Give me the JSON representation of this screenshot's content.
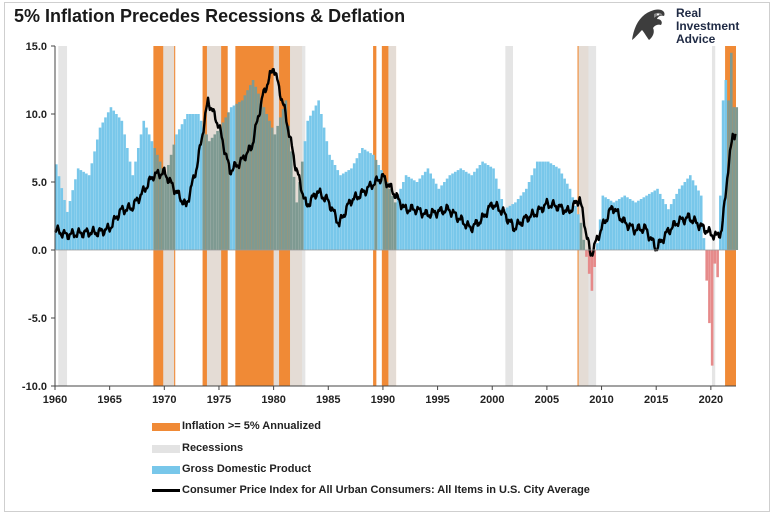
{
  "chart_data": {
    "type": "bar",
    "title": "5% Inflation Precedes Recessions & Deflation",
    "ylim": [
      -10,
      15
    ],
    "xlim": [
      1960,
      2022.3
    ],
    "y_ticks": [
      15,
      10,
      5,
      0,
      -5,
      -10
    ],
    "y_tick_labels": [
      "15.0",
      "10.0",
      "5.0",
      "0.0",
      "-5.0",
      "-10.0"
    ],
    "x_ticks": [
      1960,
      1965,
      1970,
      1975,
      1980,
      1985,
      1990,
      1995,
      2000,
      2005,
      2010,
      2015,
      2020
    ],
    "x_tick_labels": [
      "1960",
      "1965",
      "1970",
      "1975",
      "1980",
      "1985",
      "1990",
      "1995",
      "2000",
      "2005",
      "2010",
      "2015",
      "2020"
    ],
    "legend_position": "bottom",
    "colors": {
      "inflation": "#f08a36",
      "recession": "#e3e3e3",
      "gdp": "#78c7ea",
      "gdp_negative": "#e68a8a",
      "overlap": "#7e9a92",
      "cpi": "#000000"
    },
    "series": [
      {
        "name": "Inflation >= 5% Annualized",
        "kind": "shaded-periods",
        "periods": [
          [
            1969.0,
            1971.0
          ],
          [
            1973.5,
            1975.8
          ],
          [
            1976.5,
            1982.6
          ],
          [
            1989.1,
            1989.4
          ],
          [
            1989.9,
            1991.2
          ],
          [
            2007.8,
            2008.8
          ],
          [
            2021.3,
            2022.3
          ]
        ]
      },
      {
        "name": "Recessions",
        "kind": "shaded-periods",
        "periods": [
          [
            1960.3,
            1961.1
          ],
          [
            1969.9,
            1970.9
          ],
          [
            1973.9,
            1975.2
          ],
          [
            1980.0,
            1980.5
          ],
          [
            1981.5,
            1982.9
          ],
          [
            1990.5,
            1991.2
          ],
          [
            2001.2,
            2001.9
          ],
          [
            2007.9,
            2009.5
          ],
          [
            2020.1,
            2020.4
          ]
        ]
      },
      {
        "name": "Gross Domestic Product",
        "kind": "bars",
        "x": [
          1960,
          1961,
          1962,
          1963,
          1964,
          1965,
          1966,
          1967,
          1968,
          1969,
          1970,
          1971,
          1972,
          1973,
          1974,
          1975,
          1976,
          1977,
          1978,
          1979,
          1980,
          1981,
          1982,
          1983,
          1984,
          1985,
          1986,
          1987,
          1988,
          1989,
          1990,
          1991,
          1992,
          1993,
          1994,
          1995,
          1996,
          1997,
          1998,
          1999,
          2000,
          2001,
          2002,
          2003,
          2004,
          2005,
          2006,
          2007,
          2008,
          2009,
          2010,
          2011,
          2012,
          2013,
          2014,
          2015,
          2016,
          2017,
          2018,
          2019,
          2020,
          2020.25,
          2020.5,
          2020.75,
          2021,
          2021.25,
          2021.5,
          2021.75,
          2022
        ],
        "values": [
          6.3,
          2.8,
          6.0,
          5.5,
          9.0,
          10.5,
          9.5,
          5.5,
          9.5,
          7.5,
          5.5,
          8.5,
          10.0,
          10.0,
          8.0,
          9.0,
          10.5,
          11.0,
          12.5,
          10.5,
          8.5,
          11.0,
          3.5,
          9.5,
          11.0,
          7.0,
          5.5,
          6.0,
          7.5,
          7.0,
          5.5,
          3.5,
          5.5,
          5.0,
          6.0,
          4.5,
          5.5,
          6.0,
          5.5,
          6.5,
          6.0,
          3.0,
          3.5,
          4.5,
          6.5,
          6.5,
          6.0,
          4.5,
          2.0,
          -3.0,
          4.0,
          3.5,
          4.0,
          3.5,
          4.0,
          4.5,
          3.0,
          4.5,
          5.5,
          4.0,
          -8.5,
          -1.0,
          -2.0,
          4.0,
          11.0,
          12.5,
          11.0,
          14.5,
          10.5
        ]
      },
      {
        "name": "Consumer Price Index for All Urban Consumers: All Items in U.S. City Average",
        "kind": "line",
        "x": [
          1960,
          1961,
          1962,
          1963,
          1964,
          1965,
          1966,
          1967,
          1968,
          1969,
          1970,
          1971,
          1972,
          1973,
          1974,
          1975,
          1976,
          1977,
          1978,
          1979,
          1980,
          1981,
          1982,
          1983,
          1984,
          1985,
          1986,
          1987,
          1988,
          1989,
          1990,
          1991,
          1992,
          1993,
          1994,
          1995,
          1996,
          1997,
          1998,
          1999,
          2000,
          2001,
          2002,
          2003,
          2004,
          2005,
          2006,
          2007,
          2008,
          2009,
          2010,
          2011,
          2012,
          2013,
          2014,
          2015,
          2016,
          2017,
          2018,
          2019,
          2020,
          2020.5,
          2021,
          2021.5,
          2022
        ],
        "values": [
          1.5,
          1.1,
          1.2,
          1.3,
          1.3,
          1.6,
          2.9,
          3.1,
          4.2,
          5.5,
          5.7,
          4.4,
          3.2,
          6.2,
          11.0,
          9.1,
          5.8,
          6.5,
          7.6,
          11.3,
          13.5,
          10.3,
          6.2,
          3.2,
          4.3,
          3.6,
          1.9,
          3.6,
          4.1,
          4.8,
          5.4,
          4.2,
          3.0,
          3.0,
          2.6,
          2.8,
          3.0,
          2.3,
          1.6,
          2.2,
          3.4,
          2.8,
          1.6,
          2.3,
          2.7,
          3.4,
          3.2,
          2.8,
          3.8,
          -0.4,
          1.6,
          3.2,
          2.1,
          1.5,
          1.6,
          0.1,
          1.3,
          2.1,
          2.4,
          1.8,
          1.2,
          1.0,
          1.4,
          5.4,
          8.5
        ]
      }
    ]
  },
  "legend": {
    "items": [
      {
        "label": "Inflation >= 5% Annualized"
      },
      {
        "label": "Recessions"
      },
      {
        "label": "Gross Domestic Product"
      },
      {
        "label": "Consumer Price Index for All Urban Consumers: All Items in U.S. City Average"
      }
    ]
  },
  "logo": {
    "line1": "Real",
    "line2": "Investment",
    "line3": "Advice",
    "icon": "eagle-icon"
  }
}
